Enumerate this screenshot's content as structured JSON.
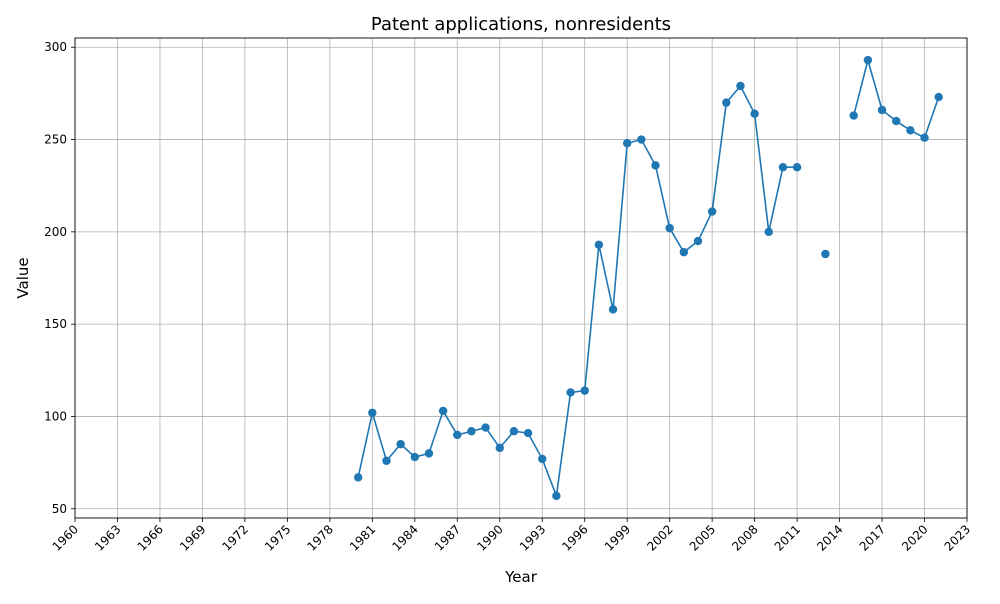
{
  "chart_data": {
    "type": "line",
    "title": "Patent applications, nonresidents",
    "xlabel": "Year",
    "ylabel": "Value",
    "xlim": [
      1960,
      2023
    ],
    "ylim": [
      45,
      305
    ],
    "x_ticks": [
      1960,
      1963,
      1966,
      1969,
      1972,
      1975,
      1978,
      1981,
      1984,
      1987,
      1990,
      1993,
      1996,
      1999,
      2002,
      2005,
      2008,
      2011,
      2014,
      2017,
      2020,
      2023
    ],
    "y_ticks": [
      50,
      100,
      150,
      200,
      250,
      300
    ],
    "grid": true,
    "color": "#1f77b4",
    "series": [
      {
        "x": [
          1980,
          1981,
          1982,
          1983,
          1984,
          1985,
          1986,
          1987,
          1988,
          1989,
          1990,
          1991,
          1992,
          1993,
          1994,
          1995,
          1996,
          1997,
          1998,
          1999,
          2000,
          2001,
          2002,
          2003,
          2004,
          2005,
          2006,
          2007,
          2008,
          2009,
          2010,
          2011,
          2012,
          2013,
          2014,
          2015,
          2016,
          2017,
          2018,
          2019,
          2020,
          2021
        ],
        "y": [
          67,
          102,
          76,
          85,
          78,
          80,
          103,
          90,
          92,
          94,
          83,
          92,
          91,
          77,
          57,
          113,
          114,
          193,
          158,
          248,
          250,
          236,
          202,
          189,
          195,
          211,
          270,
          279,
          264,
          200,
          235,
          235,
          null,
          188,
          null,
          263,
          293,
          266,
          260,
          255,
          251,
          273
        ]
      }
    ]
  }
}
